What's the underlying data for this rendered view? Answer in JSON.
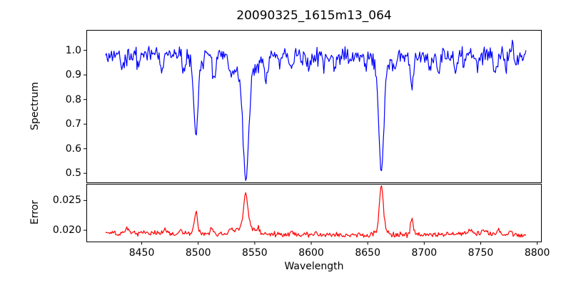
{
  "chart": {
    "title": "20090325_1615m13_064",
    "background": "#ffffff",
    "axis_color": "#000000"
  },
  "chart_data": {
    "type": "line",
    "description": "Two stacked panels sharing a wavelength axis: top panel blue stellar spectrum (Ca II triplet absorption lines), bottom panel red error spectrum.",
    "x": {
      "label": "Wavelength",
      "lim": [
        8401,
        8804
      ],
      "ticks": [
        8450,
        8500,
        8550,
        8600,
        8650,
        8700,
        8750,
        8800
      ],
      "tick_labels": [
        "8450",
        "8500",
        "8550",
        "8600",
        "8650",
        "8700",
        "8750",
        "8800"
      ],
      "data_range": [
        8418,
        8790
      ],
      "n_points": 496,
      "seed": 1615064
    },
    "spectrum_panel": {
      "ylabel": "Spectrum",
      "ylim": [
        0.463,
        1.083
      ],
      "yticks": [
        0.5,
        0.6,
        0.7,
        0.8,
        0.9,
        1.0
      ],
      "ytick_labels": [
        "0.5",
        "0.6",
        "0.7",
        "0.8",
        "0.9",
        "1.0"
      ],
      "color": "#0000ff",
      "continuum": 0.98,
      "noise_sigma": 0.017,
      "key_lines": [
        {
          "name": "line-8498",
          "center": 8498.0,
          "min_flux": 0.645
        },
        {
          "name": "line-8542",
          "center": 8542.1,
          "min_flux": 0.48
        },
        {
          "name": "line-8662",
          "center": 8662.1,
          "min_flux": 0.51
        }
      ],
      "absorption_components": [
        {
          "center": 8433.0,
          "depth": 0.05,
          "width": 1.4
        },
        {
          "center": 8447.0,
          "depth": 0.04,
          "width": 1.2
        },
        {
          "center": 8468.0,
          "depth": 0.06,
          "width": 1.4
        },
        {
          "center": 8487.0,
          "depth": 0.07,
          "width": 1.4
        },
        {
          "center": 8498.0,
          "depth": 0.28,
          "width": 1.8
        },
        {
          "center": 8498.0,
          "depth": 0.055,
          "width": 4.0
        },
        {
          "center": 8514.0,
          "depth": 0.1,
          "width": 1.4
        },
        {
          "center": 8529.0,
          "depth": 0.05,
          "width": 2.0
        },
        {
          "center": 8542.1,
          "depth": 0.41,
          "width": 2.5
        },
        {
          "center": 8542.1,
          "depth": 0.09,
          "width": 8.0
        },
        {
          "center": 8560.0,
          "depth": 0.07,
          "width": 1.6
        },
        {
          "center": 8572.0,
          "depth": 0.04,
          "width": 1.3
        },
        {
          "center": 8582.0,
          "depth": 0.06,
          "width": 1.4
        },
        {
          "center": 8598.0,
          "depth": 0.05,
          "width": 1.3
        },
        {
          "center": 8611.0,
          "depth": 0.04,
          "width": 1.2
        },
        {
          "center": 8621.0,
          "depth": 0.05,
          "width": 1.3
        },
        {
          "center": 8634.0,
          "depth": 0.04,
          "width": 1.2
        },
        {
          "center": 8648.0,
          "depth": 0.04,
          "width": 1.2
        },
        {
          "center": 8662.1,
          "depth": 0.39,
          "width": 2.1
        },
        {
          "center": 8662.1,
          "depth": 0.08,
          "width": 5.0
        },
        {
          "center": 8674.0,
          "depth": 0.05,
          "width": 1.2
        },
        {
          "center": 8689.0,
          "depth": 0.125,
          "width": 1.5
        },
        {
          "center": 8705.0,
          "depth": 0.06,
          "width": 1.4
        },
        {
          "center": 8713.0,
          "depth": 0.05,
          "width": 1.2
        },
        {
          "center": 8728.0,
          "depth": 0.07,
          "width": 1.4
        },
        {
          "center": 8736.0,
          "depth": 0.05,
          "width": 1.2
        },
        {
          "center": 8747.0,
          "depth": 0.05,
          "width": 1.2
        },
        {
          "center": 8763.0,
          "depth": 0.08,
          "width": 1.4
        },
        {
          "center": 8772.0,
          "depth": 0.05,
          "width": 1.2
        },
        {
          "center": 8782.0,
          "depth": 0.04,
          "width": 1.2
        }
      ],
      "emission_spikes": [
        {
          "center": 8778.0,
          "amplitude": 0.085,
          "width": 0.7
        }
      ]
    },
    "error_panel": {
      "ylabel": "Error",
      "ylim": [
        0.0181,
        0.0278
      ],
      "yticks": [
        0.02,
        0.025
      ],
      "ytick_labels": [
        "0.020",
        "0.025"
      ],
      "color": "#ff0000",
      "noise_sigma": 0.00021,
      "baseline_points": [
        [
          8418,
          0.01955
        ],
        [
          8500,
          0.01945
        ],
        [
          8560,
          0.01935
        ],
        [
          8640,
          0.01915
        ],
        [
          8700,
          0.01925
        ],
        [
          8755,
          0.0195
        ],
        [
          8790,
          0.019
        ]
      ],
      "peak_components": [
        {
          "center": 8437.0,
          "amplitude": 0.0009,
          "width": 1.2
        },
        {
          "center": 8470.0,
          "amplitude": 0.0007,
          "width": 1.5
        },
        {
          "center": 8484.0,
          "amplitude": 0.0006,
          "width": 1.2
        },
        {
          "center": 8498.0,
          "amplitude": 0.0036,
          "width": 1.5
        },
        {
          "center": 8512.0,
          "amplitude": 0.0008,
          "width": 1.2
        },
        {
          "center": 8530.0,
          "amplitude": 0.0009,
          "width": 1.6
        },
        {
          "center": 8542.1,
          "amplitude": 0.0055,
          "width": 1.9
        },
        {
          "center": 8542.1,
          "amplitude": 0.0013,
          "width": 6.0
        },
        {
          "center": 8553.0,
          "amplitude": 0.001,
          "width": 1.0
        },
        {
          "center": 8583.0,
          "amplitude": 0.0006,
          "width": 1.2
        },
        {
          "center": 8605.0,
          "amplitude": 0.0004,
          "width": 1.5
        },
        {
          "center": 8662.1,
          "amplitude": 0.0072,
          "width": 1.7
        },
        {
          "center": 8662.1,
          "amplitude": 0.001,
          "width": 4.0
        },
        {
          "center": 8689.0,
          "amplitude": 0.003,
          "width": 1.2
        },
        {
          "center": 8740.0,
          "amplitude": 0.0004,
          "width": 2.0
        },
        {
          "center": 8752.0,
          "amplitude": 0.0006,
          "width": 1.5
        },
        {
          "center": 8766.0,
          "amplitude": 0.0007,
          "width": 1.5
        },
        {
          "center": 8776.0,
          "amplitude": 0.0005,
          "width": 1.5
        }
      ]
    }
  }
}
